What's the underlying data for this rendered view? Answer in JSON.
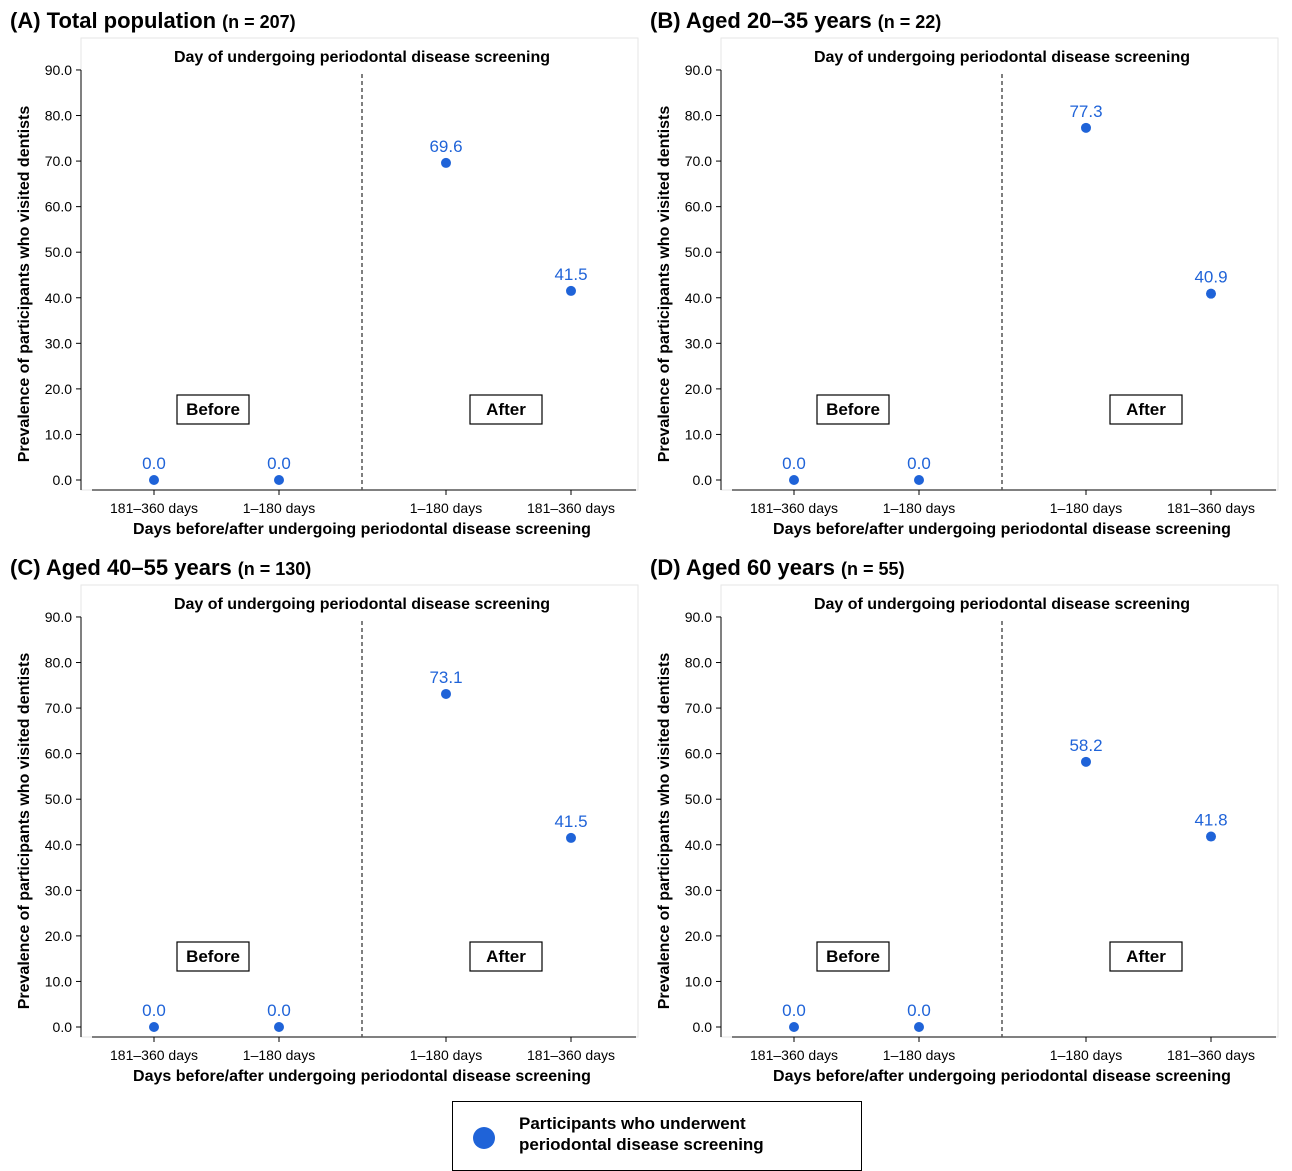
{
  "legend": {
    "label_line1": "Participants who underwent",
    "label_line2": "periodontal disease screening",
    "marker_color": "#1f63d8"
  },
  "colors": {
    "point": "#1f63d8",
    "label": "#1f63d8",
    "divider": "#555555"
  },
  "chart_data": [
    {
      "type": "scatter",
      "panel": "(A)",
      "title_main": "(A) Total population",
      "title_n": "(n = 207)",
      "subtitle": "Day of undergoing periodontal disease screening",
      "xlabel": "Days before/after undergoing periodontal disease screening",
      "ylabel": "Prevalence of participants who visited dentists",
      "categories": [
        "181–360 days",
        "1–180 days",
        "1–180 days",
        "181–360 days"
      ],
      "values": [
        0.0,
        0.0,
        69.6,
        41.5
      ],
      "value_labels": [
        "0.0",
        "0.0",
        "69.6",
        "41.5"
      ],
      "group_labels": [
        "Before",
        "After"
      ],
      "yticks": [
        "0.0",
        "10.0",
        "20.0",
        "30.0",
        "40.0",
        "50.0",
        "60.0",
        "70.0",
        "80.0",
        "90.0"
      ],
      "ylim": [
        0,
        90
      ],
      "grid": false
    },
    {
      "type": "scatter",
      "panel": "(B)",
      "title_main": "(B) Aged 20–35 years",
      "title_n": "(n = 22)",
      "subtitle": "Day of undergoing periodontal disease screening",
      "xlabel": "Days before/after undergoing periodontal disease screening",
      "ylabel": "Prevalence of participants who visited dentists",
      "categories": [
        "181–360 days",
        "1–180 days",
        "1–180 days",
        "181–360 days"
      ],
      "values": [
        0.0,
        0.0,
        77.3,
        40.9
      ],
      "value_labels": [
        "0.0",
        "0.0",
        "77.3",
        "40.9"
      ],
      "group_labels": [
        "Before",
        "After"
      ],
      "yticks": [
        "0.0",
        "10.0",
        "20.0",
        "30.0",
        "40.0",
        "50.0",
        "60.0",
        "70.0",
        "80.0",
        "90.0"
      ],
      "ylim": [
        0,
        90
      ],
      "grid": false
    },
    {
      "type": "scatter",
      "panel": "(C)",
      "title_main": "(C) Aged 40–55 years",
      "title_n": "(n = 130)",
      "subtitle": "Day of undergoing periodontal disease screening",
      "xlabel": "Days before/after undergoing periodontal disease screening",
      "ylabel": "Prevalence of participants who visited dentists",
      "categories": [
        "181–360 days",
        "1–180 days",
        "1–180 days",
        "181–360 days"
      ],
      "values": [
        0.0,
        0.0,
        73.1,
        41.5
      ],
      "value_labels": [
        "0.0",
        "0.0",
        "73.1",
        "41.5"
      ],
      "group_labels": [
        "Before",
        "After"
      ],
      "yticks": [
        "0.0",
        "10.0",
        "20.0",
        "30.0",
        "40.0",
        "50.0",
        "60.0",
        "70.0",
        "80.0",
        "90.0"
      ],
      "ylim": [
        0,
        90
      ],
      "grid": false
    },
    {
      "type": "scatter",
      "panel": "(D)",
      "title_main": "(D) Aged 60 years",
      "title_n": "(n = 55)",
      "subtitle": "Day of undergoing periodontal disease screening",
      "xlabel": "Days before/after undergoing periodontal disease screening",
      "ylabel": "Prevalence of participants who visited dentists",
      "categories": [
        "181–360 days",
        "1–180 days",
        "1–180 days",
        "181–360 days"
      ],
      "values": [
        0.0,
        0.0,
        58.2,
        41.8
      ],
      "value_labels": [
        "0.0",
        "0.0",
        "58.2",
        "41.8"
      ],
      "group_labels": [
        "Before",
        "After"
      ],
      "yticks": [
        "0.0",
        "10.0",
        "20.0",
        "30.0",
        "40.0",
        "50.0",
        "60.0",
        "70.0",
        "80.0",
        "90.0"
      ],
      "ylim": [
        0,
        90
      ],
      "grid": false
    }
  ]
}
